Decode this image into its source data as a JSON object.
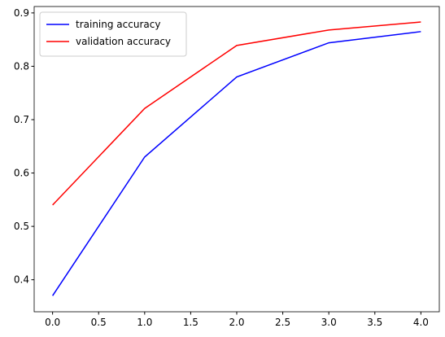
{
  "chart_data": {
    "type": "line",
    "x": [
      0,
      1,
      2,
      3,
      4
    ],
    "series": [
      {
        "name": "training accuracy",
        "color": "#0000ff",
        "values": [
          0.37,
          0.63,
          0.78,
          0.844,
          0.865
        ]
      },
      {
        "name": "validation accuracy",
        "color": "#ff0000",
        "values": [
          0.54,
          0.721,
          0.839,
          0.868,
          0.883
        ]
      }
    ],
    "xlim": [
      -0.2,
      4.2
    ],
    "xticks": [
      {
        "value": 0,
        "label": "0.0"
      },
      {
        "value": 0.5,
        "label": "0.5"
      },
      {
        "value": 1,
        "label": "1.0"
      },
      {
        "value": 1.5,
        "label": "1.5"
      },
      {
        "value": 2,
        "label": "2.0"
      },
      {
        "value": 2.5,
        "label": "2.5"
      },
      {
        "value": 3,
        "label": "3.0"
      },
      {
        "value": 3.5,
        "label": "3.5"
      },
      {
        "value": 4,
        "label": "4.0"
      }
    ],
    "ylim": [
      0.34,
      0.912
    ],
    "yticks": [
      0.4,
      0.5,
      0.6,
      0.7,
      0.8,
      0.9
    ],
    "legend": "upper left",
    "grid": false
  }
}
